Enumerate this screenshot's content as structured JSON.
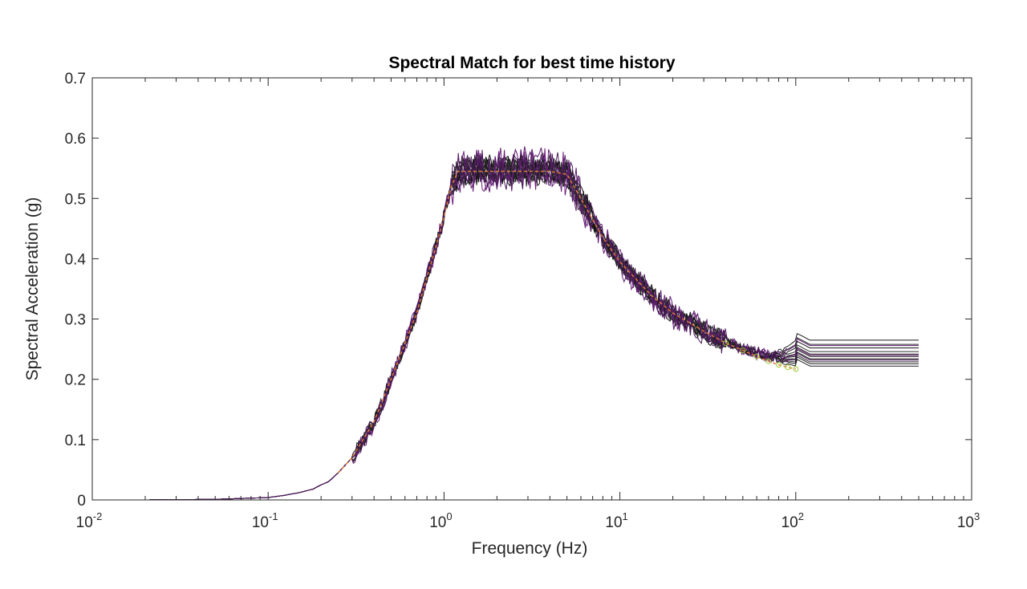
{
  "chart_data": {
    "type": "line",
    "title": "Spectral Match for best time history",
    "xlabel": "Frequency (Hz)",
    "ylabel": "Spectral Acceleration (g)",
    "xscale": "log",
    "xlim": [
      0.01,
      1000
    ],
    "ylim": [
      0,
      0.7
    ],
    "grid": false,
    "legend": "none",
    "x_ticks": [
      {
        "base": "10",
        "exp": "-2",
        "value": 0.01
      },
      {
        "base": "10",
        "exp": "-1",
        "value": 0.1
      },
      {
        "base": "10",
        "exp": "0",
        "value": 1
      },
      {
        "base": "10",
        "exp": "1",
        "value": 10
      },
      {
        "base": "10",
        "exp": "2",
        "value": 100
      },
      {
        "base": "10",
        "exp": "3",
        "value": 1000
      }
    ],
    "y_ticks": [
      "0",
      "0.1",
      "0.2",
      "0.3",
      "0.4",
      "0.5",
      "0.6",
      "0.7"
    ],
    "target_spectrum": {
      "color": "#e07b39",
      "marker_color": "#9acd32",
      "points": [
        [
          0.25,
          0.045
        ],
        [
          0.3,
          0.07
        ],
        [
          0.4,
          0.13
        ],
        [
          0.5,
          0.2
        ],
        [
          0.6,
          0.26
        ],
        [
          0.7,
          0.31
        ],
        [
          0.8,
          0.37
        ],
        [
          0.9,
          0.42
        ],
        [
          1.0,
          0.47
        ],
        [
          1.1,
          0.52
        ],
        [
          1.2,
          0.545
        ],
        [
          1.5,
          0.545
        ],
        [
          2.0,
          0.545
        ],
        [
          3.0,
          0.545
        ],
        [
          4.0,
          0.545
        ],
        [
          5.0,
          0.54
        ],
        [
          6.0,
          0.5
        ],
        [
          7.0,
          0.465
        ],
        [
          8.0,
          0.435
        ],
        [
          10.0,
          0.395
        ],
        [
          12.0,
          0.37
        ],
        [
          15.0,
          0.34
        ],
        [
          20.0,
          0.31
        ],
        [
          30.0,
          0.28
        ],
        [
          40.0,
          0.26
        ],
        [
          50.0,
          0.248
        ],
        [
          60.0,
          0.238
        ],
        [
          70.0,
          0.23
        ],
        [
          80.0,
          0.224
        ],
        [
          90.0,
          0.22
        ],
        [
          100.0,
          0.217
        ]
      ]
    },
    "base_spectrum": [
      [
        0.02,
        0.0
      ],
      [
        0.05,
        0.001
      ],
      [
        0.08,
        0.003
      ],
      [
        0.1,
        0.004
      ],
      [
        0.12,
        0.007
      ],
      [
        0.15,
        0.012
      ],
      [
        0.18,
        0.018
      ],
      [
        0.2,
        0.025
      ],
      [
        0.22,
        0.03
      ],
      [
        0.25,
        0.045
      ],
      [
        0.3,
        0.07
      ],
      [
        0.35,
        0.1
      ],
      [
        0.4,
        0.13
      ],
      [
        0.45,
        0.165
      ],
      [
        0.5,
        0.2
      ],
      [
        0.55,
        0.23
      ],
      [
        0.6,
        0.26
      ],
      [
        0.7,
        0.31
      ],
      [
        0.8,
        0.37
      ],
      [
        0.9,
        0.42
      ],
      [
        1.0,
        0.47
      ],
      [
        1.1,
        0.52
      ],
      [
        1.2,
        0.545
      ],
      [
        1.5,
        0.548
      ],
      [
        2.0,
        0.548
      ],
      [
        3.0,
        0.548
      ],
      [
        4.0,
        0.548
      ],
      [
        5.0,
        0.54
      ],
      [
        6.0,
        0.5
      ],
      [
        7.0,
        0.465
      ],
      [
        8.0,
        0.435
      ],
      [
        10.0,
        0.395
      ],
      [
        12.0,
        0.37
      ],
      [
        15.0,
        0.34
      ],
      [
        20.0,
        0.31
      ],
      [
        30.0,
        0.28
      ],
      [
        40.0,
        0.262
      ],
      [
        50.0,
        0.25
      ],
      [
        70.0,
        0.238
      ],
      [
        100.0,
        0.232
      ]
    ],
    "series": [
      {
        "color": "#1a1a1a",
        "plateau": 0.265,
        "noise": 0.018,
        "seed": 3
      },
      {
        "color": "#2a2a2a",
        "plateau": 0.258,
        "noise": 0.015,
        "seed": 7
      },
      {
        "color": "#111111",
        "plateau": 0.252,
        "noise": 0.02,
        "seed": 11
      },
      {
        "color": "#333333",
        "plateau": 0.246,
        "noise": 0.014,
        "seed": 13
      },
      {
        "color": "#1c1c1c",
        "plateau": 0.242,
        "noise": 0.022,
        "seed": 17
      },
      {
        "color": "#262626",
        "plateau": 0.238,
        "noise": 0.016,
        "seed": 19
      },
      {
        "color": "#0d0d0d",
        "plateau": 0.234,
        "noise": 0.019,
        "seed": 23
      },
      {
        "color": "#303030",
        "plateau": 0.229,
        "noise": 0.015,
        "seed": 29
      },
      {
        "color": "#181818",
        "plateau": 0.226,
        "noise": 0.021,
        "seed": 31
      },
      {
        "color": "#222222",
        "plateau": 0.222,
        "noise": 0.017,
        "seed": 37
      },
      {
        "color": "#5c1a6e",
        "plateau": 0.256,
        "noise": 0.03,
        "seed": 41
      },
      {
        "color": "#6a1f7a",
        "plateau": 0.24,
        "noise": 0.028,
        "seed": 43
      },
      {
        "color": "#4b1a5a",
        "plateau": 0.232,
        "noise": 0.026,
        "seed": 47
      }
    ]
  }
}
